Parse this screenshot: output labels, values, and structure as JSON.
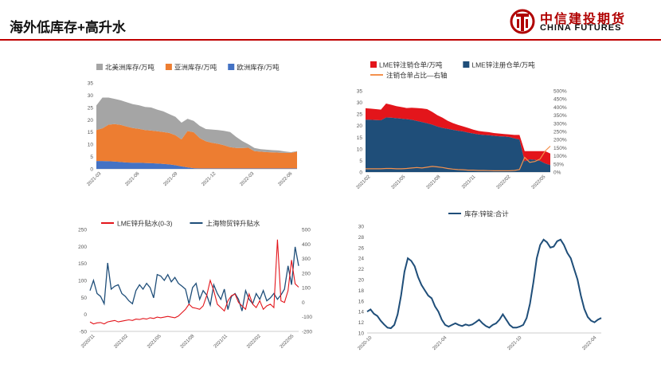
{
  "header": {
    "title": "海外低库存+高升水",
    "logo_cn": "中信建投期货",
    "logo_en": "CHINA FUTURES",
    "accent": "#c00000"
  },
  "chart_data": [
    {
      "id": "c1",
      "type": "area",
      "stacked": true,
      "title": "",
      "legend_position": "top",
      "ylim": [
        0,
        35
      ],
      "yticks": [
        0,
        5,
        10,
        15,
        20,
        25,
        30,
        35
      ],
      "x_tick_labels": [
        "2021-03",
        "2021-06",
        "2021-09",
        "2021-12",
        "2022-03",
        "2022-06"
      ],
      "x_len": 34,
      "series": [
        {
          "name": "欧洲库存/万吨",
          "color": "#4472c4",
          "values": [
            3.2,
            3.2,
            3.1,
            3.0,
            2.8,
            2.6,
            2.5,
            2.5,
            2.4,
            2.3,
            2.2,
            2.0,
            1.8,
            1.5,
            1.0,
            0.6,
            0.3,
            0.2,
            0.2,
            0.2,
            0.2,
            0.2,
            0.2,
            0.2,
            0.2,
            0.2,
            0.2,
            0.2,
            0.2,
            0.2,
            0.2,
            0.2,
            0.2,
            0.2
          ]
        },
        {
          "name": "亚洲库存/万吨",
          "color": "#ed7d31",
          "values": [
            12.6,
            13.3,
            14.9,
            15.2,
            15.1,
            14.6,
            14.1,
            13.8,
            13.4,
            13.3,
            13.1,
            13.0,
            12.8,
            12.2,
            11.0,
            14.8,
            14.6,
            12.3,
            11.0,
            10.4,
            10.0,
            9.4,
            8.6,
            8.3,
            8.3,
            8.4,
            7.0,
            6.8,
            6.6,
            6.5,
            6.4,
            6.3,
            6.3,
            6.8
          ]
        },
        {
          "name": "北美洲库存/万吨",
          "color": "#a5a5a5",
          "values": [
            10.0,
            12.5,
            11.0,
            10.3,
            10.0,
            9.9,
            9.7,
            9.6,
            9.4,
            9.4,
            8.8,
            8.4,
            7.7,
            7.5,
            6.8,
            5.0,
            4.6,
            5.0,
            5.0,
            5.4,
            5.6,
            5.9,
            6.2,
            4.5,
            2.8,
            1.4,
            1.3,
            1.0,
            1.0,
            0.9,
            0.9,
            0.6,
            0.3,
            0.2
          ]
        }
      ]
    },
    {
      "id": "c2",
      "type": "area",
      "title": "",
      "legend_position": "top",
      "ylim": [
        0,
        35
      ],
      "yticks": [
        0,
        5,
        10,
        15,
        20,
        25,
        30,
        35
      ],
      "y2lim": [
        0,
        500
      ],
      "y2ticks": [
        "0%",
        "50%",
        "100%",
        "150%",
        "200%",
        "250%",
        "300%",
        "350%",
        "400%",
        "450%",
        "500%"
      ],
      "x_tick_labels": [
        "2021/02",
        "2021/05",
        "2021/08",
        "2021/11",
        "2022/02",
        "2022/05"
      ],
      "x_len": 37,
      "series": [
        {
          "name": "LME锌注册仓单/万吨",
          "color": "#1f4e79",
          "values": [
            22.5,
            22.5,
            22.4,
            22.3,
            23.5,
            23.4,
            23.2,
            23.0,
            22.8,
            22.5,
            22.0,
            21.5,
            21.0,
            20.4,
            19.6,
            19.0,
            18.6,
            18.2,
            17.8,
            17.5,
            17.0,
            16.6,
            16.2,
            16.0,
            15.9,
            15.6,
            15.4,
            15.3,
            15.1,
            14.5,
            14.0,
            4.6,
            5.5,
            5.3,
            4.8,
            3.7,
            3.0
          ]
        },
        {
          "name": "LME锌注销仓单/万吨",
          "color": "#e3151b",
          "values": [
            5.0,
            4.8,
            4.7,
            4.6,
            6.0,
            5.6,
            5.2,
            5.0,
            4.8,
            5.2,
            5.6,
            5.9,
            6.1,
            5.5,
            4.9,
            4.4,
            3.5,
            2.9,
            2.5,
            2.2,
            2.0,
            1.7,
            1.5,
            1.4,
            1.3,
            1.2,
            1.2,
            1.1,
            1.1,
            1.5,
            2.0,
            4.4,
            3.5,
            3.7,
            4.2,
            5.3,
            5.0
          ]
        },
        {
          "name": "注销仓单占比—右轴",
          "color": "#f4914e",
          "axis": "right",
          "values": [
            20,
            20,
            20,
            20,
            22,
            22,
            20,
            20,
            22,
            25,
            28,
            25,
            30,
            35,
            32,
            28,
            22,
            18,
            15,
            14,
            12,
            12,
            10,
            10,
            9,
            8,
            8,
            8,
            8,
            10,
            15,
            90,
            60,
            65,
            80,
            130,
            160
          ]
        }
      ]
    },
    {
      "id": "c3",
      "type": "line",
      "title": "",
      "legend_position": "top",
      "ylim": [
        -50,
        250
      ],
      "yticks": [
        -50,
        0,
        50,
        100,
        150,
        200,
        250
      ],
      "y2lim": [
        -200,
        500
      ],
      "y2ticks": [
        -200,
        -100,
        0,
        100,
        200,
        300,
        400,
        500
      ],
      "x_tick_labels": [
        "2020/11",
        "2021/02",
        "2021/05",
        "2021/08",
        "2021/11",
        "2022/02",
        "2022/05"
      ],
      "x_len": 60,
      "series": [
        {
          "name": "LME锌升贴水(0-3)",
          "color": "#e3151b",
          "axis": "left",
          "values": [
            -22,
            -28,
            -25,
            -24,
            -28,
            -22,
            -20,
            -18,
            -22,
            -20,
            -18,
            -16,
            -18,
            -14,
            -15,
            -12,
            -14,
            -10,
            -12,
            -8,
            -10,
            -8,
            -6,
            -8,
            -10,
            -5,
            5,
            15,
            30,
            20,
            18,
            15,
            25,
            55,
            100,
            70,
            30,
            20,
            10,
            40,
            55,
            60,
            35,
            25,
            15,
            60,
            30,
            20,
            40,
            15,
            25,
            30,
            20,
            220,
            40,
            35,
            70,
            160,
            90,
            80
          ]
        },
        {
          "name": "上海物贸锌升贴水",
          "color": "#1f4e79",
          "axis": "right",
          "values": [
            80,
            150,
            60,
            40,
            -10,
            270,
            90,
            110,
            120,
            60,
            40,
            10,
            -10,
            80,
            120,
            90,
            130,
            100,
            30,
            190,
            180,
            150,
            190,
            140,
            170,
            130,
            110,
            90,
            -10,
            100,
            130,
            20,
            80,
            50,
            -20,
            120,
            60,
            20,
            90,
            -50,
            40,
            60,
            20,
            -60,
            80,
            20,
            -10,
            60,
            20,
            80,
            10,
            30,
            60,
            20,
            50,
            90,
            250,
            120,
            380,
            250
          ]
        }
      ]
    },
    {
      "id": "c4",
      "type": "line",
      "title": "库存:锌锭:合计",
      "legend_position": "top",
      "ylim": [
        10,
        30
      ],
      "yticks": [
        10,
        12,
        14,
        16,
        18,
        20,
        22,
        24,
        26,
        28,
        30
      ],
      "x_tick_labels": [
        "2020-10",
        "2021-04",
        "2021-10",
        "2022-04"
      ],
      "x_len": 70,
      "series": [
        {
          "name": "库存:锌锭:合计",
          "color": "#1f4e79",
          "values": [
            14.0,
            14.4,
            13.6,
            13.2,
            12.3,
            11.6,
            11.0,
            10.9,
            11.5,
            13.5,
            17.0,
            21.5,
            24.0,
            23.5,
            22.5,
            20.5,
            19.0,
            18.0,
            17.0,
            16.5,
            15.0,
            14.0,
            12.5,
            11.5,
            11.2,
            11.5,
            11.8,
            11.5,
            11.3,
            11.6,
            11.4,
            11.6,
            12.0,
            12.5,
            11.8,
            11.3,
            11.0,
            11.5,
            11.8,
            12.5,
            13.5,
            12.5,
            11.5,
            11.0,
            11.0,
            11.2,
            11.5,
            12.8,
            15.5,
            19.5,
            24.0,
            26.5,
            27.5,
            27.0,
            26.0,
            26.2,
            27.2,
            27.5,
            26.5,
            25.0,
            24.0,
            22.0,
            20.0,
            17.0,
            14.5,
            13.0,
            12.3,
            12.0,
            12.5,
            12.8
          ]
        }
      ]
    }
  ]
}
